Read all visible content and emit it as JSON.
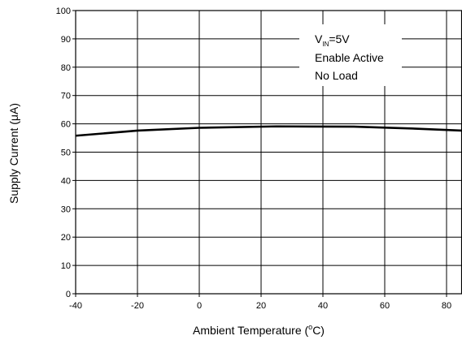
{
  "chart_data": {
    "type": "line",
    "title": "",
    "xlabel": {
      "prefix": "Ambient Temperature (",
      "sup": "o",
      "suffix": "C)"
    },
    "ylabel": "Supply Current (μA)",
    "xlim": [
      -40,
      85
    ],
    "ylim": [
      0,
      100
    ],
    "xticks": [
      -40,
      -20,
      0,
      20,
      40,
      60,
      80
    ],
    "yticks": [
      0,
      10,
      20,
      30,
      40,
      50,
      60,
      70,
      80,
      90,
      100
    ],
    "grid": true,
    "series": [
      {
        "x": [
          -40,
          -20,
          0,
          25,
          50,
          70,
          85
        ],
        "y": [
          55.8,
          57.6,
          58.6,
          59.1,
          59.0,
          58.3,
          57.6
        ]
      }
    ],
    "annotation": {
      "vin_main": "V",
      "vin_sub": "IN",
      "vin_rest": "=5V",
      "line2": "Enable Active",
      "line3": "No Load"
    },
    "colors": {
      "line": "#000000",
      "grid": "#000000",
      "background": "#ffffff"
    }
  }
}
